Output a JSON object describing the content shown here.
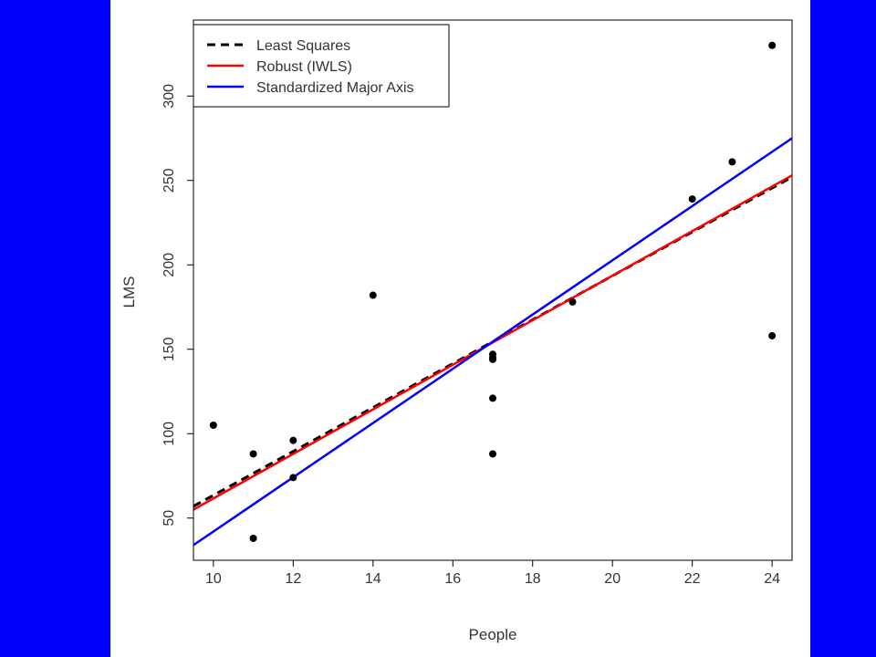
{
  "chart_data": {
    "type": "scatter",
    "title": "",
    "xlabel": "People",
    "ylabel": "LMS",
    "xlim": [
      9.5,
      24.5
    ],
    "ylim": [
      25,
      345
    ],
    "x_ticks": [
      "10",
      "12",
      "14",
      "16",
      "18",
      "20",
      "22",
      "24"
    ],
    "y_ticks": [
      "50",
      "100",
      "150",
      "200",
      "250",
      "300"
    ],
    "grid": false,
    "legend_position": "top-left",
    "points": {
      "x": [
        10,
        11,
        11,
        12,
        12,
        14,
        17,
        17,
        17,
        17,
        17,
        19,
        22,
        23,
        24,
        24
      ],
      "y": [
        105,
        88,
        38,
        96,
        74,
        182,
        147,
        145,
        121,
        88,
        144,
        178,
        239,
        261,
        330,
        158
      ],
      "color": "#000000"
    },
    "series": [
      {
        "name": "Least Squares",
        "style": "dashed",
        "color": "#000000",
        "x": [
          9.5,
          24.5
        ],
        "y": [
          57,
          252
        ]
      },
      {
        "name": "Robust (IWLS)",
        "style": "solid",
        "color": "#ff0000",
        "x": [
          9.5,
          24.5
        ],
        "y": [
          55,
          253
        ]
      },
      {
        "name": "Standardized Major Axis",
        "style": "solid",
        "color": "#0000ff",
        "x": [
          9.5,
          24.5
        ],
        "y": [
          34,
          275
        ]
      }
    ]
  }
}
